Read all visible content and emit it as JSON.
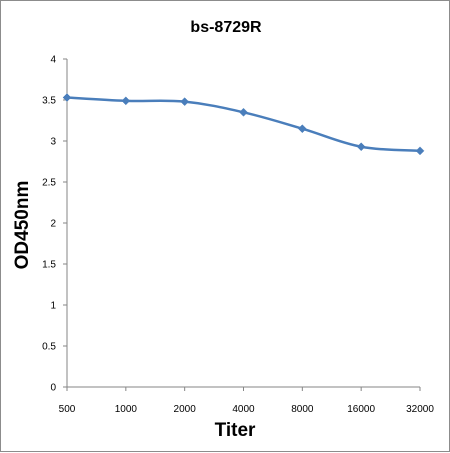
{
  "chart_data": {
    "type": "line",
    "title": "bs-8729R",
    "xlabel": "Titer",
    "ylabel": "OD450nm",
    "categories": [
      "500",
      "1000",
      "2000",
      "4000",
      "8000",
      "16000",
      "32000"
    ],
    "series": [
      {
        "values": [
          3.53,
          3.49,
          3.48,
          3.35,
          3.15,
          2.93,
          2.88
        ],
        "color": "#4a7ebb"
      }
    ],
    "ylim": [
      0,
      4
    ],
    "yticks": [
      "0",
      "0.5",
      "1",
      "1.5",
      "2",
      "2.5",
      "3",
      "3.5",
      "4"
    ],
    "grid": false,
    "legend": "none",
    "line_style": "smooth",
    "marker": "diamond"
  }
}
